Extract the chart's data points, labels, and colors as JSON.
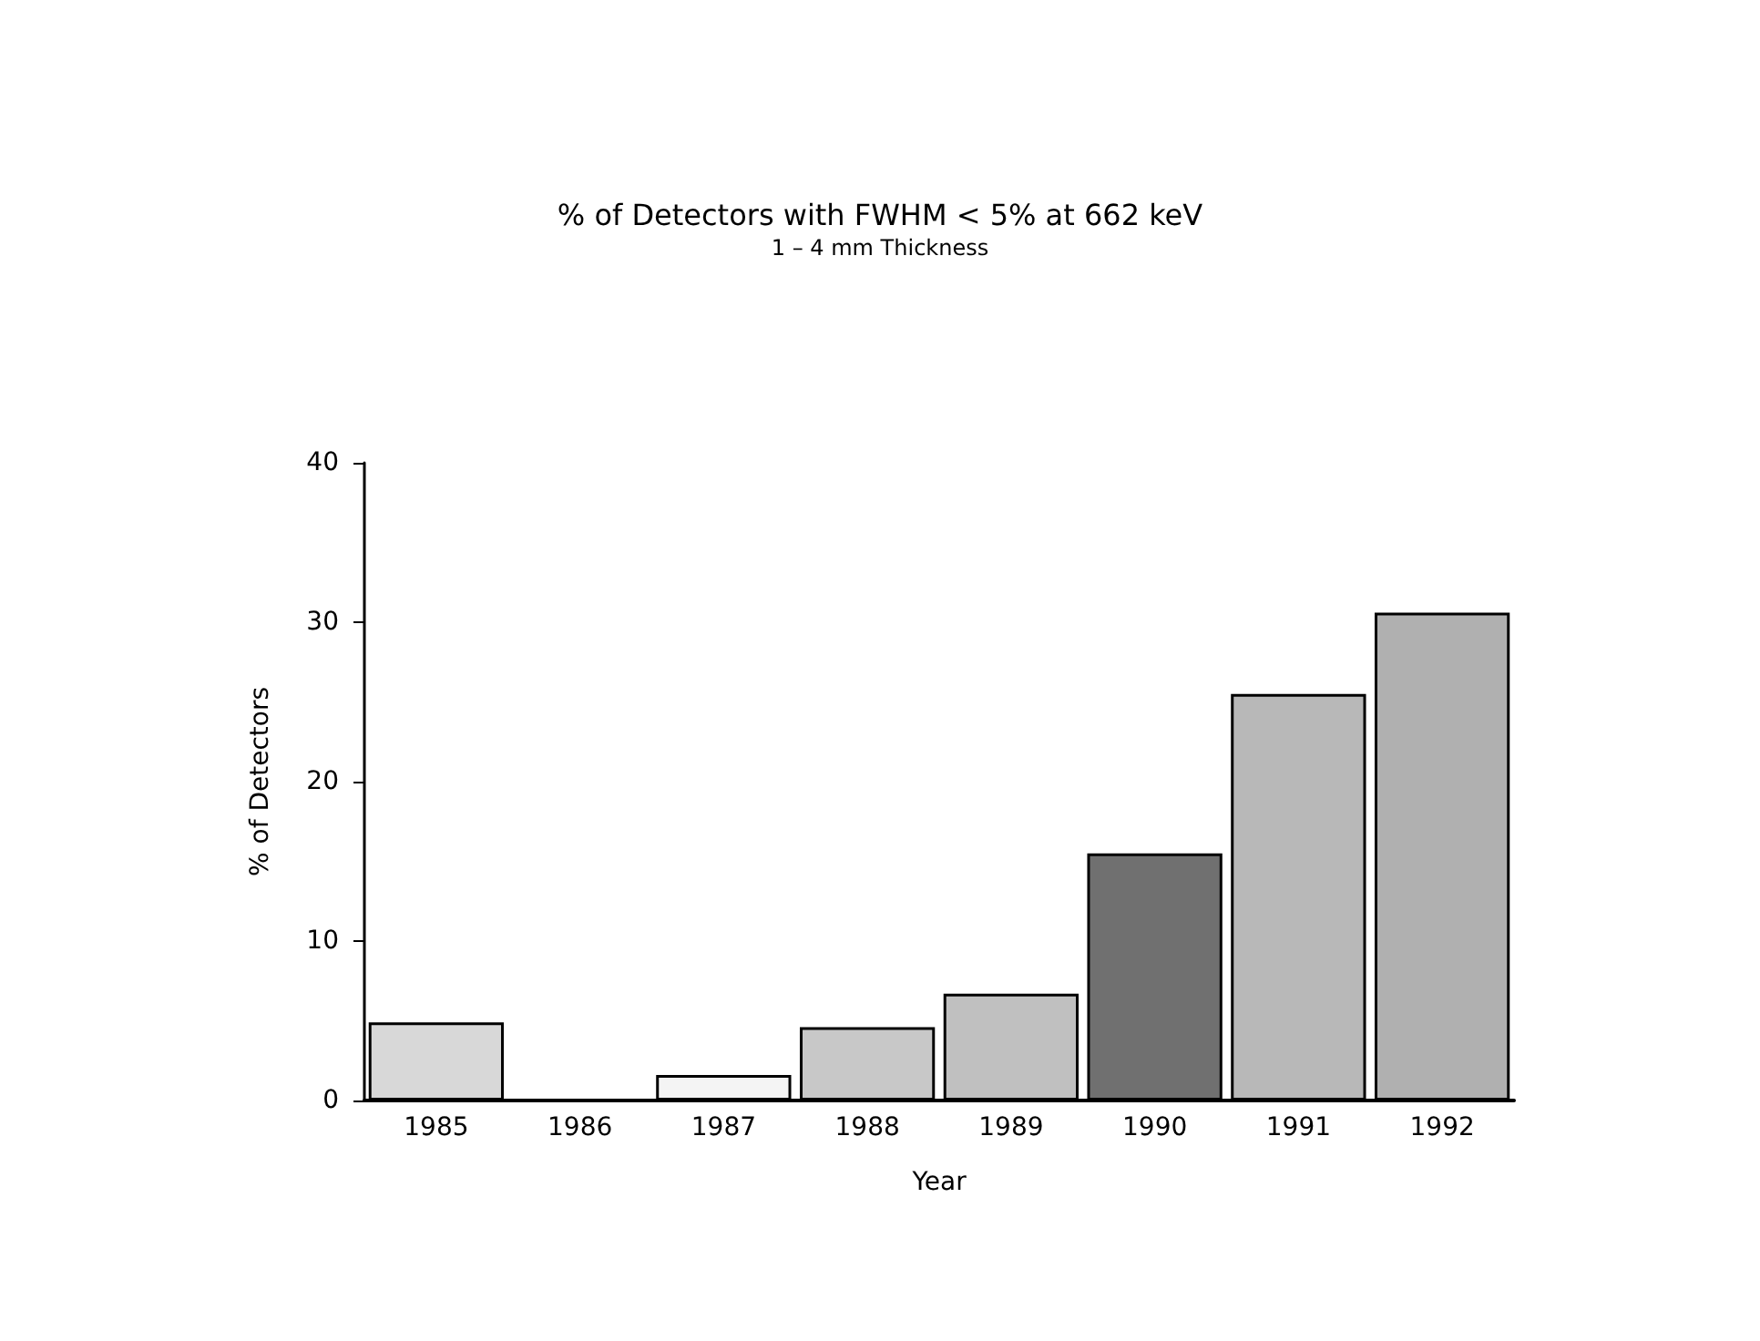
{
  "chart_data": {
    "type": "bar",
    "title": "% of Detectors with FWHM < 5% at 662 keV",
    "subtitle": "1 – 4 mm Thickness",
    "xlabel": "Year",
    "ylabel": "% of Detectors",
    "categories": [
      "1985",
      "1986",
      "1987",
      "1988",
      "1989",
      "1990",
      "1991",
      "1992"
    ],
    "values": [
      4.9,
      0,
      1.6,
      4.6,
      6.7,
      15.5,
      25.5,
      30.6
    ],
    "colors": [
      "#d8d8d8",
      "#ffffff",
      "#f4f4f4",
      "#c8c8c8",
      "#c0c0c0",
      "#707070",
      "#b8b8b8",
      "#b0b0b0"
    ],
    "ylim": [
      0,
      40
    ],
    "yticks": [
      0,
      10,
      20,
      30,
      40
    ]
  }
}
